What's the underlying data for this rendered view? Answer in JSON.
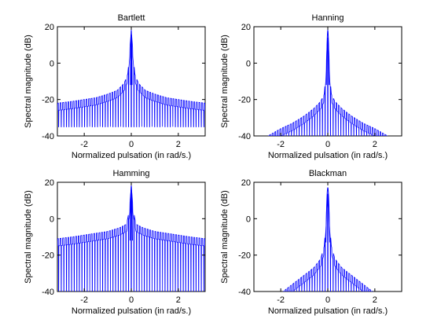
{
  "chart_data": [
    {
      "type": "line",
      "title": "Bartlett",
      "xlabel": "Normalized pulsation (in rad/s.)",
      "ylabel": "Spectral magnitude (dB)",
      "xlim": [
        -3.1416,
        3.1416
      ],
      "ylim": [
        -40,
        20
      ],
      "xticks": [
        -2,
        0,
        2
      ],
      "yticks": [
        -40,
        -20,
        0,
        20
      ],
      "grid": false,
      "series": [
        {
          "color": "#0000ff",
          "peak_db": 18,
          "peak_width": 0.035,
          "floor_db": -25,
          "null_depth_db": -35,
          "extent": 3.1416,
          "x": [
            -3.1416,
            -2.5,
            -2.0,
            -1.5,
            -1.0,
            -0.6,
            -0.3,
            -0.15,
            -0.06,
            0,
            0.06,
            0.15,
            0.3,
            0.6,
            1.0,
            1.5,
            2.0,
            2.5,
            3.1416
          ],
          "y": [
            -22,
            -21,
            -20,
            -19,
            -17,
            -15,
            -11,
            -6,
            8,
            18,
            8,
            -6,
            -11,
            -15,
            -17,
            -19,
            -20,
            -21,
            -22
          ]
        }
      ]
    },
    {
      "type": "line",
      "title": "Hanning",
      "xlabel": "Normalized pulsation (in rad/s.)",
      "ylabel": "Spectral magnitude (dB)",
      "xlim": [
        -3.1416,
        3.1416
      ],
      "ylim": [
        -40,
        20
      ],
      "xticks": [
        -2,
        0,
        2
      ],
      "yticks": [
        -40,
        -20,
        0,
        20
      ],
      "grid": false,
      "series": [
        {
          "color": "#0000ff",
          "peak_db": 18,
          "peak_width": 0.06,
          "floor_db": -40,
          "null_depth_db": -40,
          "extent": 2.55,
          "x": [
            -2.55,
            -2.0,
            -1.5,
            -1.0,
            -0.6,
            -0.3,
            -0.15,
            -0.08,
            0,
            0.08,
            0.15,
            0.3,
            0.6,
            1.0,
            1.5,
            2.0,
            2.55
          ],
          "y": [
            -40,
            -36,
            -33,
            -29,
            -25,
            -21,
            -17,
            -5,
            18,
            -5,
            -17,
            -21,
            -25,
            -29,
            -33,
            -36,
            -40
          ]
        }
      ]
    },
    {
      "type": "line",
      "title": "Hamming",
      "xlabel": "Normalized pulsation (in rad/s.)",
      "ylabel": "Spectral magnitude (dB)",
      "xlim": [
        -3.1416,
        3.1416
      ],
      "ylim": [
        -40,
        20
      ],
      "xticks": [
        -2,
        0,
        2
      ],
      "yticks": [
        -40,
        -20,
        0,
        20
      ],
      "grid": false,
      "series": [
        {
          "color": "#0000ff",
          "peak_db": 18,
          "peak_width": 0.05,
          "floor_db": -12,
          "null_depth_db": -40,
          "extent": 3.1416,
          "x": [
            -3.1416,
            -2.5,
            -2.0,
            -1.5,
            -1.0,
            -0.5,
            -0.2,
            -0.08,
            0,
            0.08,
            0.2,
            0.5,
            1.0,
            1.5,
            2.0,
            2.5,
            3.1416
          ],
          "y": [
            -11,
            -10,
            -9,
            -8,
            -7,
            -5,
            -3,
            5,
            18,
            5,
            -3,
            -5,
            -7,
            -8,
            -9,
            -10,
            -11
          ]
        }
      ]
    },
    {
      "type": "line",
      "title": "Blackman",
      "xlabel": "Normalized pulsation (in rad/s.)",
      "ylabel": "Spectral magnitude (dB)",
      "xlim": [
        -3.1416,
        3.1416
      ],
      "ylim": [
        -40,
        20
      ],
      "xticks": [
        -2,
        0,
        2
      ],
      "yticks": [
        -40,
        -20,
        0,
        20
      ],
      "grid": false,
      "series": [
        {
          "color": "#0000ff",
          "peak_db": 17,
          "peak_width": 0.08,
          "floor_db": -40,
          "null_depth_db": -40,
          "extent": 1.9,
          "x": [
            -1.9,
            -1.5,
            -1.0,
            -0.6,
            -0.3,
            -0.15,
            -0.08,
            0,
            0.08,
            0.15,
            0.3,
            0.6,
            1.0,
            1.5,
            1.9
          ],
          "y": [
            -40,
            -36,
            -31,
            -27,
            -22,
            -15,
            -2,
            17,
            -2,
            -15,
            -22,
            -27,
            -31,
            -36,
            -40
          ]
        }
      ]
    }
  ]
}
